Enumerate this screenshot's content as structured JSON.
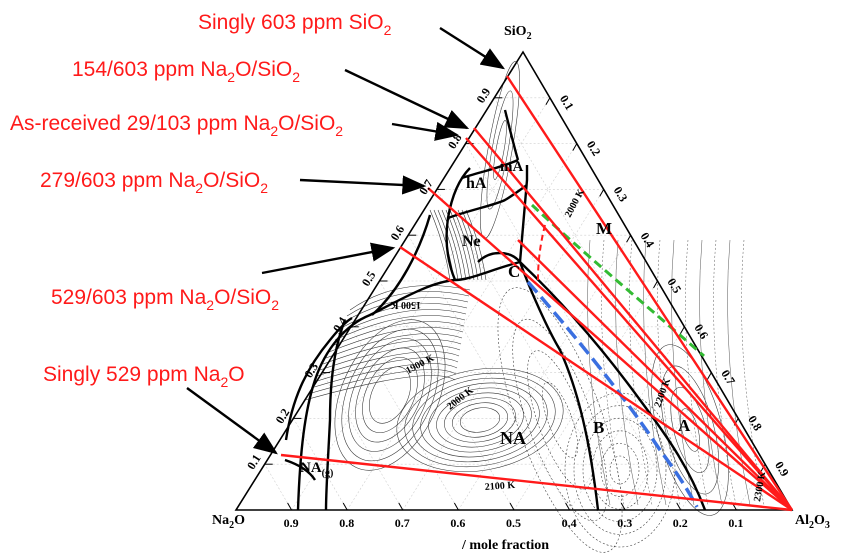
{
  "diagram": {
    "vertices": {
      "top": {
        "base": "SiO",
        "sub": "2"
      },
      "left": {
        "base": "Na",
        "sub": "2",
        "tail": "O"
      },
      "right": {
        "base": "Al",
        "sub": "2",
        "tail": "O",
        "sub2": "3"
      }
    },
    "axis_title": "/ mole fraction",
    "bottom_ticks": [
      "0.9",
      "0.8",
      "0.7",
      "0.6",
      "0.5",
      "0.4",
      "0.3",
      "0.2",
      "0.1"
    ],
    "left_ticks": [
      "0.1",
      "0.2",
      "0.3",
      "0.4",
      "0.5",
      "0.6",
      "0.7",
      "0.8",
      "0.9"
    ],
    "right_ticks": [
      "0.1",
      "0.2",
      "0.3",
      "0.4",
      "0.5",
      "0.6",
      "0.7",
      "0.8",
      "0.9"
    ],
    "regions": [
      "mA",
      "hA",
      "Ne",
      "M",
      "C",
      "NA",
      "B",
      "A"
    ],
    "gas_label": {
      "base": "NA",
      "sub": "(g)"
    },
    "contour_labels": [
      "2000 K",
      "1500 K",
      "1900 K",
      "2000 K",
      "2100 K",
      "2200 K",
      "2300 K"
    ],
    "annotations": [
      {
        "parts": [
          {
            "t": "Singly 603 ppm SiO"
          },
          {
            "t": "2",
            "sub": true
          }
        ]
      },
      {
        "parts": [
          {
            "t": "154/603 ppm Na"
          },
          {
            "t": "2",
            "sub": true
          },
          {
            "t": "O/SiO"
          },
          {
            "t": "2",
            "sub": true
          }
        ]
      },
      {
        "parts": [
          {
            "t": "As-received 29/103 ppm Na"
          },
          {
            "t": "2",
            "sub": true
          },
          {
            "t": "O/SiO"
          },
          {
            "t": "2",
            "sub": true
          }
        ]
      },
      {
        "parts": [
          {
            "t": "279/603 ppm Na"
          },
          {
            "t": "2",
            "sub": true
          },
          {
            "t": "O/SiO"
          },
          {
            "t": "2",
            "sub": true
          }
        ]
      },
      {
        "parts": [
          {
            "t": "529/603 ppm Na"
          },
          {
            "t": "2",
            "sub": true
          },
          {
            "t": "O/SiO"
          },
          {
            "t": "2",
            "sub": true
          }
        ]
      },
      {
        "parts": [
          {
            "t": "Singly 529 ppm Na"
          },
          {
            "t": "2",
            "sub": true
          },
          {
            "t": "O"
          }
        ]
      }
    ],
    "colors": {
      "annotation_red": "#ff1a1a",
      "phase_boundary": "#000000",
      "dashed_blue": "#3a6fe0",
      "dashed_green": "#33bb33"
    }
  }
}
